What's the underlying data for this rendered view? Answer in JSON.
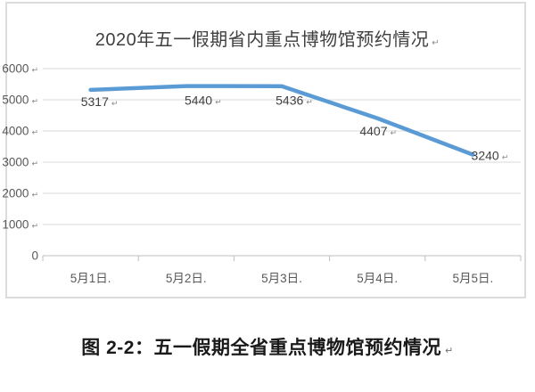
{
  "marks": {
    "return": "↵",
    "date_suffix": "."
  },
  "colors": {
    "line": "#5b9bd5",
    "grid": "#d9d9d9",
    "axis": "#bfbfbf",
    "tick_label": "#595959",
    "data_label": "#404040",
    "mark": "#8a8a8a",
    "title": "#3f3f3f",
    "caption": "#1a1a1a",
    "frame_border": "#dcdcdc"
  },
  "chart_data": {
    "type": "line",
    "title": "2020年五一假期省内重点博物馆预约情况",
    "categories": [
      "5月1日",
      "5月2日",
      "5月3日",
      "5月4日",
      "5月5日"
    ],
    "values": [
      5317,
      5440,
      5436,
      4407,
      3240
    ],
    "xlabel": "",
    "ylabel": "",
    "ylim": [
      0,
      6000
    ],
    "ytick_step": 1000,
    "grid": true,
    "legend": false,
    "data_labels": true
  },
  "figure": {
    "caption": "图 2-2：五一假期全省重点博物馆预约情况"
  }
}
